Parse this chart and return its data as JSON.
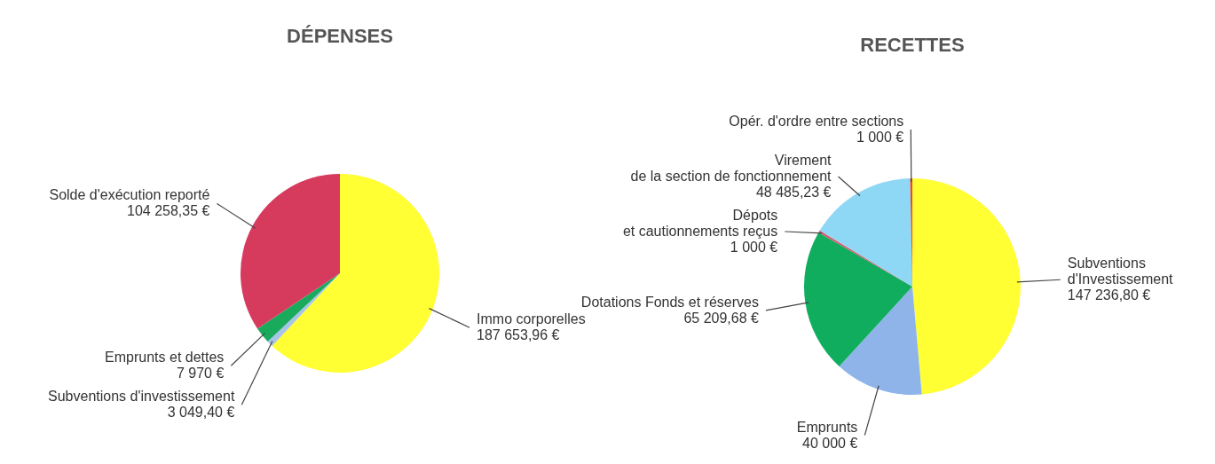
{
  "chart_data": [
    {
      "type": "pie",
      "title": "DÉPENSES",
      "categories": [
        "Immo corporelles",
        "Subventions d'investissement",
        "Emprunts et dettes",
        "Solde d'exécution reporté"
      ],
      "values": [
        187653.96,
        3049.4,
        7970,
        104258.35
      ],
      "colors": [
        "#ffff33",
        "#a8c4e8",
        "#1aaa5c",
        "#d63b5e"
      ],
      "value_labels": [
        "187 653,96 €",
        "3 049,40 €",
        "7 970 €",
        "104 258,35 €"
      ]
    },
    {
      "type": "pie",
      "title": "RECETTES",
      "categories": [
        "Subventions\nd'Investissement",
        "Emprunts",
        "Dotations Fonds et réserves",
        "Dépots\net cautionnements reçus",
        "Virement\nde la section de fonctionnement",
        "Opér. d'ordre entre sections"
      ],
      "values": [
        147236.8,
        40000,
        65209.68,
        1000,
        48485.23,
        1000
      ],
      "colors": [
        "#ffff33",
        "#8fb4ea",
        "#11ad5f",
        "#d95a6e",
        "#8fd8f5",
        "#ee4a2a"
      ],
      "value_labels": [
        "147 236,80 €",
        "40 000 €",
        "65 209,68 €",
        "1 000 €",
        "48 485,23 €",
        "1 000 €"
      ]
    }
  ]
}
